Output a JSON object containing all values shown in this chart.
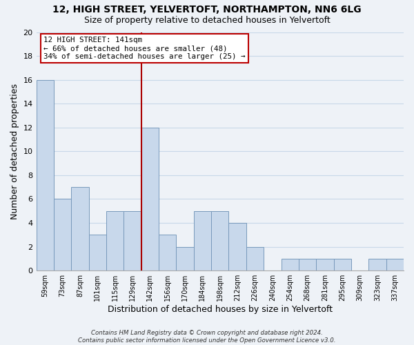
{
  "title1": "12, HIGH STREET, YELVERTOFT, NORTHAMPTON, NN6 6LG",
  "title2": "Size of property relative to detached houses in Yelvertoft",
  "xlabel": "Distribution of detached houses by size in Yelvertoft",
  "ylabel": "Number of detached properties",
  "bin_labels": [
    "59sqm",
    "73sqm",
    "87sqm",
    "101sqm",
    "115sqm",
    "129sqm",
    "142sqm",
    "156sqm",
    "170sqm",
    "184sqm",
    "198sqm",
    "212sqm",
    "226sqm",
    "240sqm",
    "254sqm",
    "268sqm",
    "281sqm",
    "295sqm",
    "309sqm",
    "323sqm",
    "337sqm"
  ],
  "bar_heights": [
    16,
    6,
    7,
    3,
    5,
    5,
    12,
    3,
    2,
    5,
    5,
    4,
    2,
    0,
    1,
    1,
    1,
    1,
    0,
    1,
    1
  ],
  "bar_color": "#c8d8eb",
  "bar_edge_color": "#7799bb",
  "grid_color": "#c8d8e8",
  "vline_color": "#aa0000",
  "ylim": [
    0,
    20
  ],
  "yticks": [
    0,
    2,
    4,
    6,
    8,
    10,
    12,
    14,
    16,
    18,
    20
  ],
  "annotation_title": "12 HIGH STREET: 141sqm",
  "annotation_line1": "← 66% of detached houses are smaller (48)",
  "annotation_line2": "34% of semi-detached houses are larger (25) →",
  "annotation_box_color": "#ffffff",
  "annotation_box_edge": "#bb0000",
  "footer1": "Contains HM Land Registry data © Crown copyright and database right 2024.",
  "footer2": "Contains public sector information licensed under the Open Government Licence v3.0.",
  "background_color": "#eef2f7",
  "plot_background_color": "#eef2f7"
}
